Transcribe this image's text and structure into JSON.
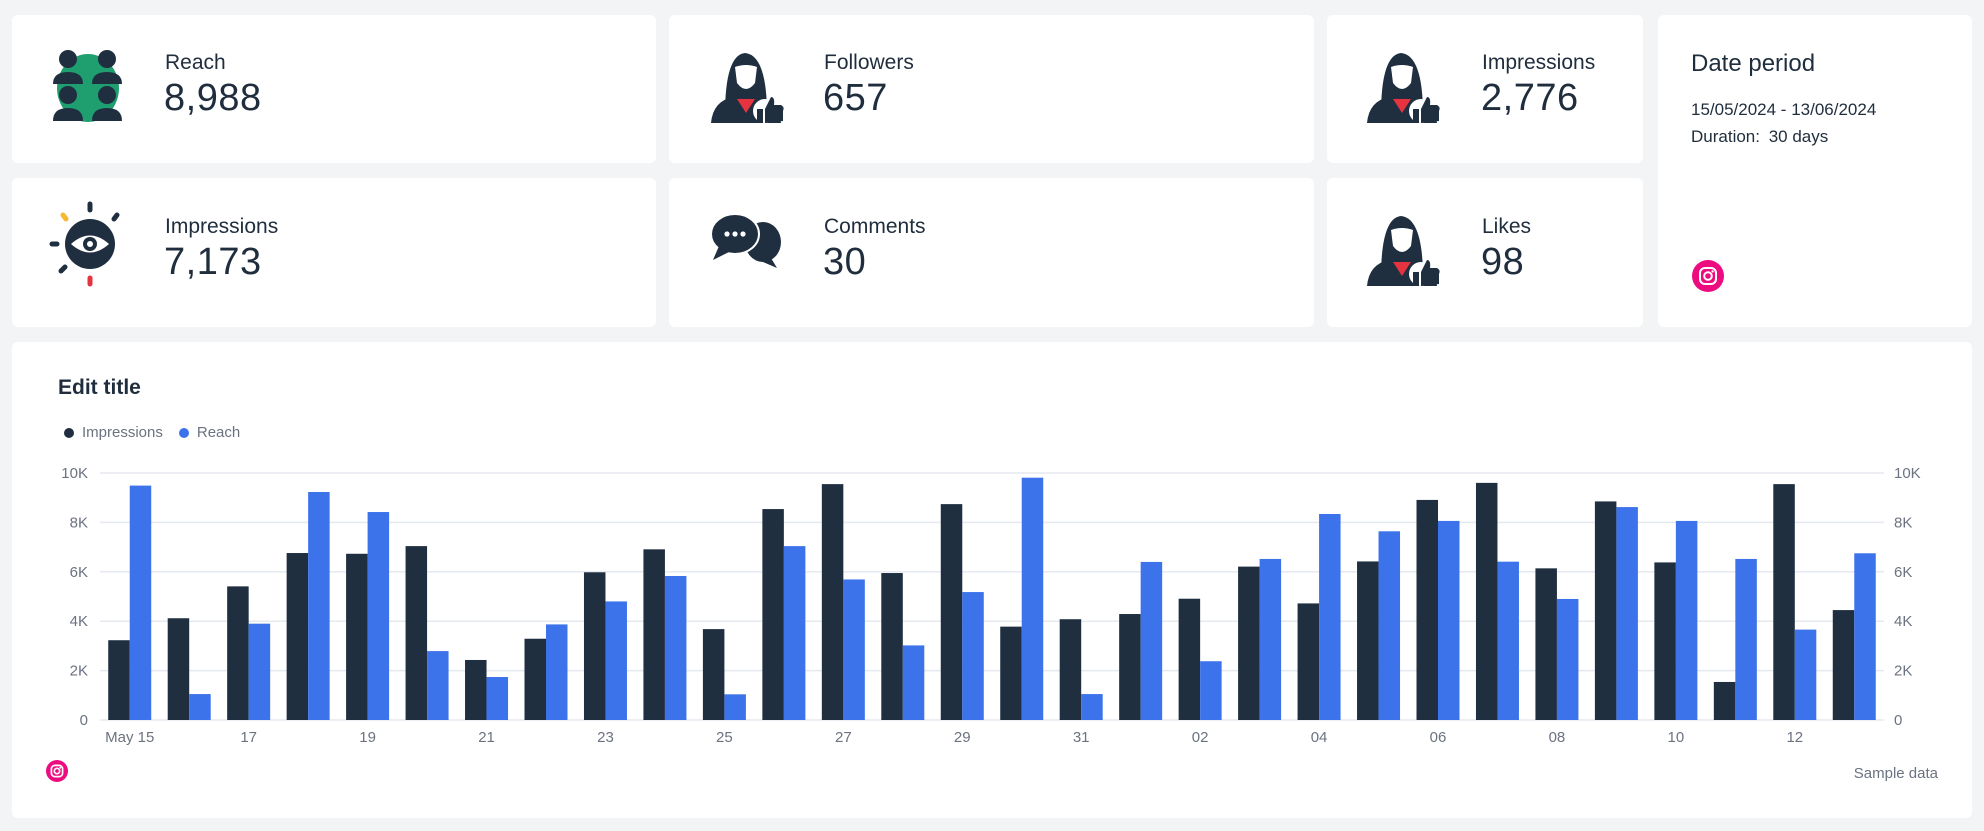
{
  "kpis": {
    "reach": {
      "label": "Reach",
      "value": "8,988",
      "icon": "people-group-icon"
    },
    "followers": {
      "label": "Followers",
      "value": "657",
      "icon": "woman-thumbs-up-icon"
    },
    "impressions_top": {
      "label": "Impressions",
      "value": "2,776",
      "icon": "woman-thumbs-up-icon"
    },
    "impressions": {
      "label": "Impressions",
      "value": "7,173",
      "icon": "eye-icon"
    },
    "comments": {
      "label": "Comments",
      "value": "30",
      "icon": "chat-bubbles-icon"
    },
    "likes": {
      "label": "Likes",
      "value": "98",
      "icon": "woman-thumbs-up-icon"
    }
  },
  "date_period": {
    "title": "Date period",
    "range": "15/05/2024 - 13/06/2024",
    "duration_label": "Duration:",
    "duration_value": "30 days",
    "icon": "instagram-icon"
  },
  "chart_card": {
    "title": "Edit title",
    "footer_icon": "instagram-icon",
    "footer_note": "Sample data"
  },
  "colors": {
    "impressions": "#1f2f40",
    "reach": "#3d73ea",
    "instagram": "#ec0c7f",
    "reach_icon_bg": "#1f9e6f",
    "accent_red": "#e53340",
    "accent_yellow": "#f5b82e"
  },
  "chart_data": {
    "type": "bar",
    "title": "Edit title",
    "xlabel": "",
    "ylabel": "",
    "ylim": [
      0,
      10000
    ],
    "y_ticks": [
      "0",
      "2K",
      "4K",
      "6K",
      "8K",
      "10K"
    ],
    "y_axis_dual": true,
    "grid": true,
    "legend_position": "top-left",
    "categories": [
      "May 15",
      "May 16",
      "May 17",
      "May 18",
      "May 19",
      "May 20",
      "May 21",
      "May 22",
      "May 23",
      "May 24",
      "May 25",
      "May 26",
      "May 27",
      "May 28",
      "May 29",
      "May 30",
      "May 31",
      "Jun 01",
      "Jun 02",
      "Jun 03",
      "Jun 04",
      "Jun 05",
      "Jun 06",
      "Jun 07",
      "Jun 08",
      "Jun 09",
      "Jun 10",
      "Jun 11",
      "Jun 12",
      "Jun 13"
    ],
    "x_tick_labels": [
      "May 15",
      "",
      "17",
      "",
      "19",
      "",
      "21",
      "",
      "23",
      "",
      "25",
      "",
      "27",
      "",
      "29",
      "",
      "31",
      "",
      "02",
      "",
      "04",
      "",
      "06",
      "",
      "08",
      "",
      "10",
      "",
      "12",
      ""
    ],
    "series": [
      {
        "name": "Impressions",
        "color": "#1f2f40",
        "values": [
          3230,
          4120,
          5410,
          6760,
          6730,
          7040,
          2430,
          3290,
          5980,
          6910,
          3680,
          8540,
          9550,
          5950,
          8740,
          3780,
          4080,
          4290,
          4910,
          6210,
          4720,
          6420,
          8910,
          9600,
          6140,
          8850,
          6380,
          1540,
          9550,
          4450
        ]
      },
      {
        "name": "Reach",
        "color": "#3d73ea",
        "values": [
          9490,
          1050,
          3900,
          9230,
          8420,
          2790,
          1740,
          3870,
          4800,
          5830,
          1040,
          7040,
          5690,
          3020,
          5180,
          9810,
          1050,
          6400,
          2380,
          6520,
          8340,
          7640,
          8060,
          6410,
          4900,
          8620,
          8060,
          6520,
          3660,
          6750
        ]
      }
    ]
  }
}
